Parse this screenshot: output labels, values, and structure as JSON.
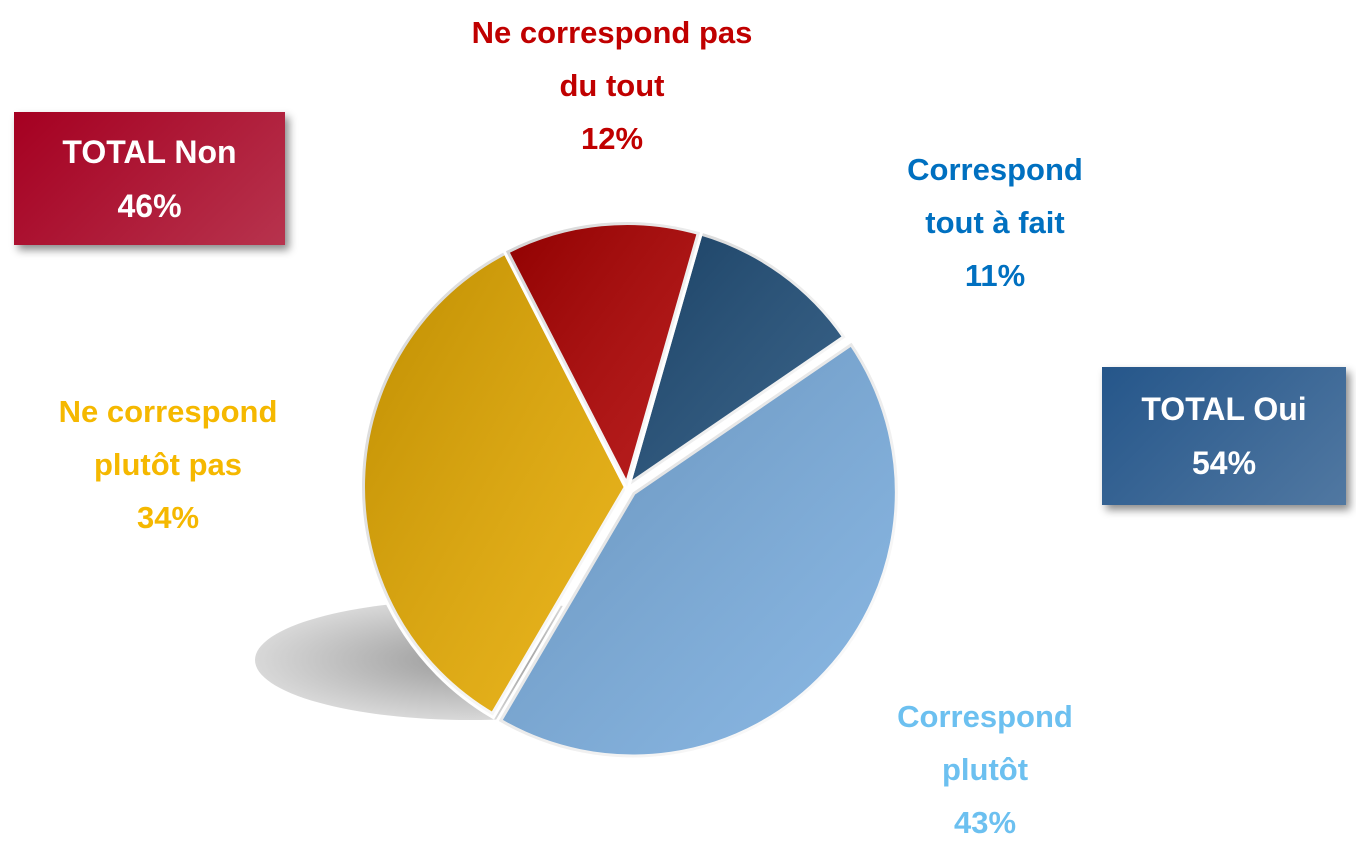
{
  "chart_data": {
    "type": "pie",
    "categories": [
      "Correspond tout à fait",
      "Correspond plutôt",
      "Ne correspond plutôt pas",
      "Ne correspond pas du tout"
    ],
    "values": [
      11,
      43,
      34,
      12
    ],
    "value_labels": [
      "11%",
      "43%",
      "34%",
      "12%"
    ],
    "colors": [
      "#1f4e79",
      "#7aaee0",
      "#e8ac00",
      "#b00000"
    ],
    "label_colors": [
      "#0070c0",
      "#6cc0f0",
      "#f5b800",
      "#c00000"
    ],
    "annotations": [
      {
        "text": "TOTAL Non",
        "label": "46%",
        "color": "#a50021"
      },
      {
        "text": "TOTAL Oui",
        "label": "54%",
        "color": "#25568a"
      }
    ]
  }
}
